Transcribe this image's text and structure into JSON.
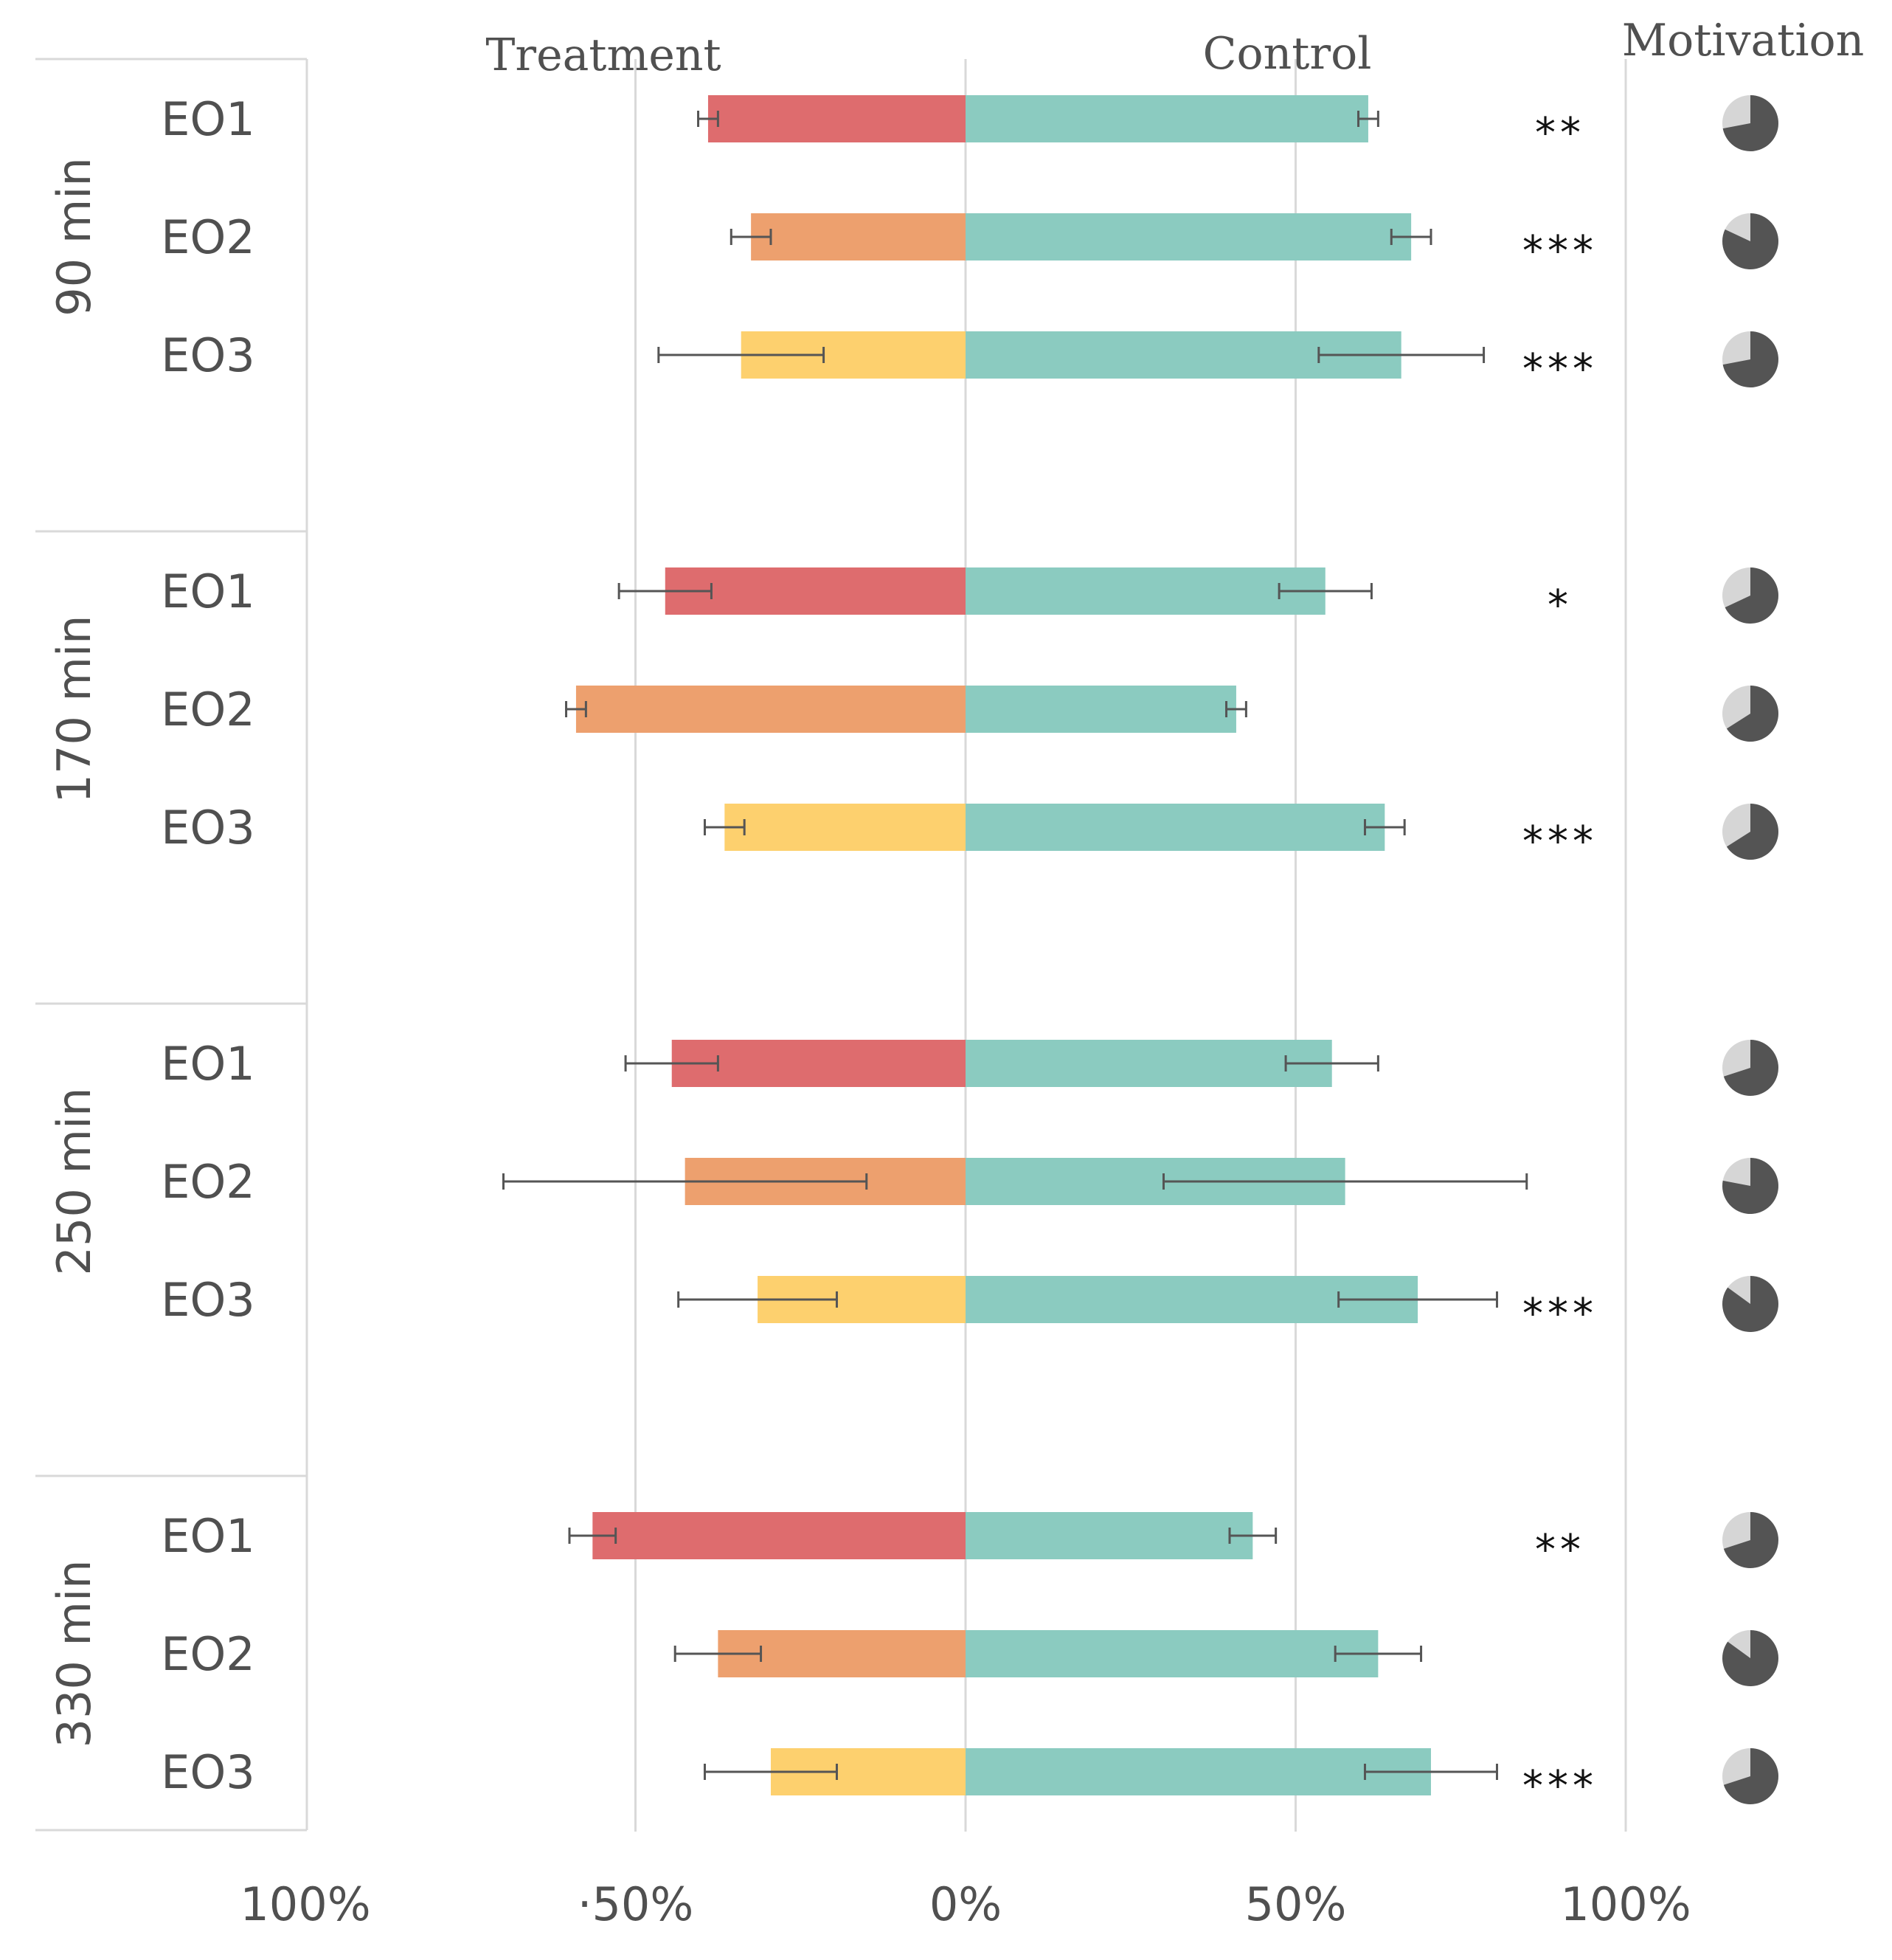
{
  "chart_data": {
    "type": "bar",
    "orientation": "horizontal-diverging",
    "header_left": "Treatment",
    "header_right": "Control",
    "header_motivation": "Motivation",
    "xlim": [
      -100,
      100
    ],
    "x_tick_labels": [
      "100%",
      "·50%",
      "0%",
      "50%",
      "100%"
    ],
    "x_tick_values": [
      -100,
      -50,
      0,
      50,
      100
    ],
    "colors": {
      "EO1": "#de6c6e",
      "EO2": "#eda06e",
      "EO3": "#fdd06e",
      "control": "#8bcbc0",
      "pie_dark": "#545454",
      "pie_light": "#d6d6d6",
      "grid": "#d9d9d9",
      "errorbar": "#555555"
    },
    "groups": [
      {
        "label": "90 min",
        "rows": [
          {
            "label": "EO1",
            "treatment": -39,
            "treatment_err": 1.5,
            "control": 61,
            "control_err": 1.5,
            "significance": "**",
            "motivation": 0.72
          },
          {
            "label": "EO2",
            "treatment": -32.5,
            "treatment_err": 3,
            "control": 67.5,
            "control_err": 3,
            "significance": "***",
            "motivation": 0.82
          },
          {
            "label": "EO3",
            "treatment": -34,
            "treatment_err": 12.5,
            "control": 66,
            "control_err": 12.5,
            "significance": "***",
            "motivation": 0.72
          }
        ]
      },
      {
        "label": "170 min",
        "rows": [
          {
            "label": "EO1",
            "treatment": -45.5,
            "treatment_err": 7,
            "control": 54.5,
            "control_err": 7,
            "significance": "*",
            "motivation": 0.68
          },
          {
            "label": "EO2",
            "treatment": -59,
            "treatment_err": 1.5,
            "control": 41,
            "control_err": 1.5,
            "significance": "",
            "motivation": 0.66
          },
          {
            "label": "EO3",
            "treatment": -36.5,
            "treatment_err": 3,
            "control": 63.5,
            "control_err": 3,
            "significance": "***",
            "motivation": 0.66
          }
        ]
      },
      {
        "label": "250 min",
        "rows": [
          {
            "label": "EO1",
            "treatment": -44.5,
            "treatment_err": 7,
            "control": 55.5,
            "control_err": 7,
            "significance": "",
            "motivation": 0.7
          },
          {
            "label": "EO2",
            "treatment": -42.5,
            "treatment_err": 27.5,
            "control": 57.5,
            "control_err": 27.5,
            "significance": "",
            "motivation": 0.78
          },
          {
            "label": "EO3",
            "treatment": -31.5,
            "treatment_err": 12,
            "control": 68.5,
            "control_err": 12,
            "significance": "***",
            "motivation": 0.85
          }
        ]
      },
      {
        "label": "330 min",
        "rows": [
          {
            "label": "EO1",
            "treatment": -56.5,
            "treatment_err": 3.5,
            "control": 43.5,
            "control_err": 3.5,
            "significance": "**",
            "motivation": 0.7
          },
          {
            "label": "EO2",
            "treatment": -37.5,
            "treatment_err": 6.5,
            "control": 62.5,
            "control_err": 6.5,
            "significance": "",
            "motivation": 0.85
          },
          {
            "label": "EO3",
            "treatment": -29.5,
            "treatment_err": 10,
            "control": 70.5,
            "control_err": 10,
            "significance": "***",
            "motivation": 0.7
          }
        ]
      }
    ]
  }
}
